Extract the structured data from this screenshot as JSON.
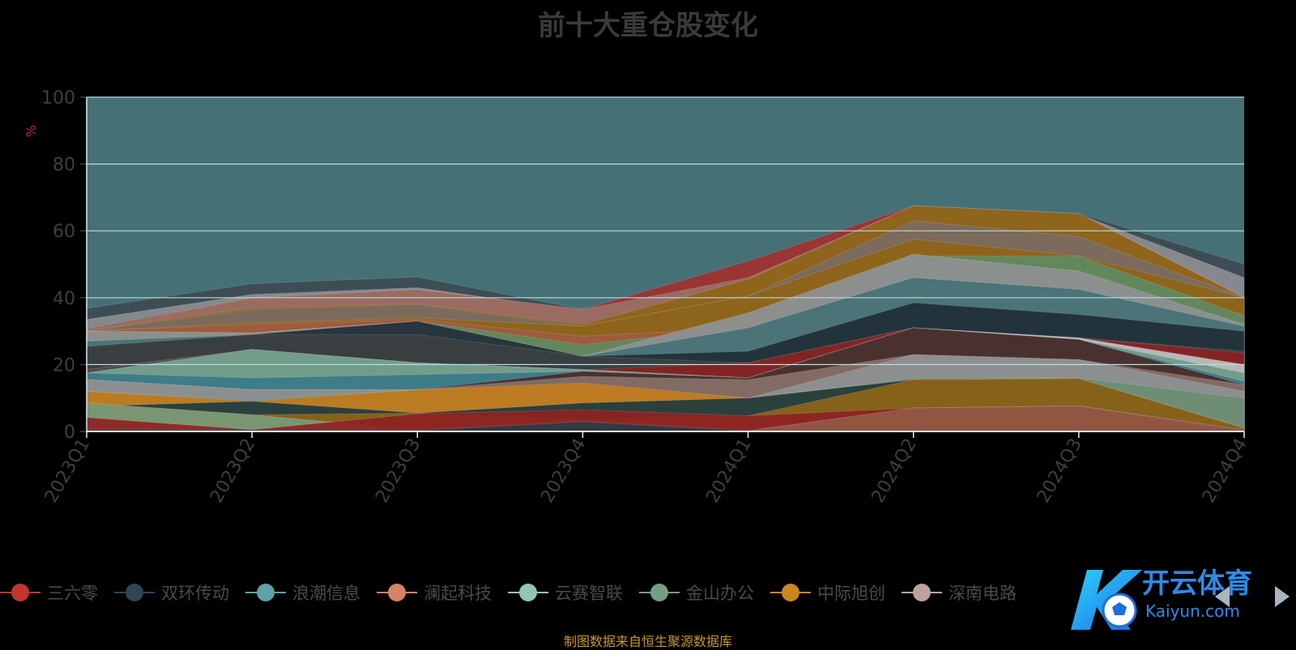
{
  "title": "前十大重仓股变化",
  "source_note": "制图数据来自恒生聚源数据库",
  "watermark": {
    "text": "开云体育",
    "subtext": "Kaiyun.com"
  },
  "colors": {
    "background": "#000000",
    "plot_bg": "#457176",
    "grid": "#b9dcd9",
    "axis_text": "#3f3f3f",
    "unit_text": "#c0262c"
  },
  "chart_data": {
    "type": "area",
    "stacked": true,
    "ylabel": "%",
    "ylim": [
      0,
      100
    ],
    "yticks": [
      0,
      20,
      40,
      60,
      80,
      100
    ],
    "categories": [
      "2023Q1",
      "2023Q2",
      "2023Q3",
      "2023Q4",
      "2024Q1",
      "2024Q2",
      "2024Q3",
      "2024Q4"
    ],
    "grid": true,
    "legend_position": "bottom",
    "series": [
      {
        "name": "三六零",
        "color": "#c23531",
        "values": [
          4.2,
          0,
          0,
          2.9,
          0,
          0,
          0,
          0
        ]
      },
      {
        "name": "双环传动",
        "color": "#2f4554",
        "values": [
          3.5,
          3.8,
          0,
          0,
          0,
          0,
          0,
          0
        ]
      },
      {
        "name": "浪潮信息",
        "color": "#61a0a8",
        "values": [
          0,
          0,
          0,
          0,
          0,
          0,
          0,
          0
        ]
      },
      {
        "name": "澜起科技",
        "color": "#d48265",
        "values": [
          0,
          0,
          0,
          0,
          0,
          7.0,
          7.6,
          0
        ]
      },
      {
        "name": "云赛智联",
        "color": "#91c7ae",
        "values": [
          0,
          0,
          0,
          0,
          0,
          0,
          0,
          0
        ]
      },
      {
        "name": "金山办公",
        "color": "#749f83",
        "values": [
          0,
          0,
          0,
          0,
          0,
          0,
          0,
          0
        ]
      },
      {
        "name": "中际旭创",
        "color": "#ca8622",
        "values": [
          4.3,
          5.0,
          5.3,
          0.9,
          4.7,
          8.4,
          8.0,
          0
        ]
      },
      {
        "name": "深南电路",
        "color": "#bda29a",
        "values": [
          0,
          0,
          0,
          0,
          5.0,
          7.5,
          5.0,
          1.0
        ]
      }
    ],
    "bands_top_down": [
      {
        "color": "#3e4a52",
        "top": [
          36.8,
          44.2,
          46.2,
          36.5,
          45.5,
          67.5,
          65.2,
          50.1
        ]
      },
      {
        "color": "#8b8e93",
        "top": [
          33.5,
          41.0,
          43.0,
          36.0,
          45.0,
          67.0,
          65.0,
          46.0
        ]
      },
      {
        "color": "#a23030",
        "top": [
          30.5,
          40.0,
          42.5,
          36.5,
          51.0,
          67.5,
          65.0,
          40.2
        ]
      },
      {
        "color": "#9a7066",
        "top": [
          30.2,
          40.0,
          42.5,
          36.5,
          46.0,
          67.5,
          65.2,
          40.2
        ]
      },
      {
        "color": "#8e6417",
        "top": [
          30.2,
          37.0,
          38.2,
          32.0,
          45.5,
          67.5,
          65.2,
          40.0
        ]
      },
      {
        "color": "#7b6a62",
        "top": [
          30.0,
          36.5,
          38.0,
          31.5,
          40.5,
          63.0,
          58.3,
          40.0
        ]
      },
      {
        "color": "#8e6417",
        "top": [
          30.0,
          32.5,
          34.0,
          31.5,
          40.5,
          57.5,
          52.5,
          40.0
        ]
      },
      {
        "color": "#a05a40",
        "top": [
          30.0,
          32.0,
          33.5,
          28.5,
          31.0,
          53.0,
          47.5,
          35.0
        ]
      },
      {
        "color": "#5e8a5f",
        "top": [
          30.0,
          29.5,
          33.0,
          26.0,
          31.0,
          52.5,
          52.5,
          34.5
        ]
      },
      {
        "color": "#8e9194",
        "top": [
          30.0,
          29.5,
          33.0,
          22.5,
          35.5,
          53.0,
          48.0,
          32.0
        ]
      },
      {
        "color": "#457176",
        "top": [
          27.0,
          29.0,
          29.0,
          22.5,
          31.0,
          46.0,
          42.5,
          31.5
        ]
      },
      {
        "color": "#1f2e36",
        "top": [
          25.0,
          29.0,
          33.0,
          22.5,
          24.0,
          38.5,
          35.0,
          30.0
        ]
      },
      {
        "color": "#3c3f42",
        "top": [
          25.5,
          29.0,
          29.0,
          22.5,
          20.5,
          31.0,
          28.0,
          24.0
        ]
      },
      {
        "color": "#8a2222",
        "top": [
          18.5,
          24.5,
          20.5,
          18.5,
          20.5,
          31.0,
          28.0,
          23.5
        ]
      },
      {
        "color": "#4b4e52",
        "top": [
          18.5,
          24.5,
          20.5,
          18.5,
          16.0,
          31.0,
          28.0,
          19.0
        ]
      },
      {
        "color": "#c0c0c0",
        "top": [
          17.5,
          24.5,
          20.5,
          18.5,
          16.0,
          31.0,
          28.0,
          20.0
        ]
      },
      {
        "color": "#6a9a86",
        "top": [
          17.5,
          24.5,
          20.5,
          18.5,
          16.0,
          31.0,
          27.5,
          17.5
        ]
      },
      {
        "color": "#3a7a88",
        "top": [
          17.5,
          16.0,
          17.0,
          18.0,
          16.0,
          31.0,
          27.5,
          15.0
        ]
      },
      {
        "color": "#4a2a28",
        "top": [
          15.5,
          12.5,
          12.5,
          18.0,
          16.0,
          31.0,
          27.5,
          14.0
        ]
      },
      {
        "color": "#887068",
        "top": [
          15.5,
          12.5,
          12.5,
          16.5,
          15.5,
          23.0,
          21.5,
          14.0
        ]
      },
      {
        "color": "#8e9194",
        "top": [
          15.5,
          12.5,
          12.5,
          14.0,
          10.0,
          23.0,
          21.5,
          12.0
        ]
      },
      {
        "color": "#6a8e72",
        "top": [
          12.0,
          9.5,
          12.5,
          8.5,
          10.0,
          16.0,
          16.0,
          10.0
        ]
      },
      {
        "color": "#c27a1a",
        "top": [
          12.0,
          9.0,
          12.5,
          14.5,
          10.0,
          15.5,
          15.8,
          1.0
        ]
      },
      {
        "color": "#1e3a40",
        "top": [
          7.5,
          9.0,
          5.5,
          8.5,
          10.0,
          15.5,
          15.8,
          1.0
        ]
      },
      {
        "color": "#8e6417",
        "top": [
          8.5,
          5.0,
          5.5,
          3.5,
          4.7,
          15.5,
          15.8,
          1.0
        ]
      },
      {
        "color": "#7a9a7a",
        "top": [
          8.5,
          5.0,
          0.5,
          3.5,
          0.5,
          7.0,
          7.6,
          0.5
        ]
      },
      {
        "color": "#8e2222",
        "top": [
          4.2,
          0.5,
          5.3,
          6.5,
          4.7,
          7.0,
          7.6,
          0.5
        ]
      },
      {
        "color": "#2a3a44",
        "top": [
          0.5,
          0.5,
          0.3,
          2.9,
          0.2,
          7.0,
          7.6,
          0.3
        ]
      },
      {
        "color": "#9a5842",
        "top": [
          0.2,
          0.2,
          0.2,
          0.2,
          0.2,
          7.0,
          7.6,
          0.2
        ]
      }
    ]
  }
}
